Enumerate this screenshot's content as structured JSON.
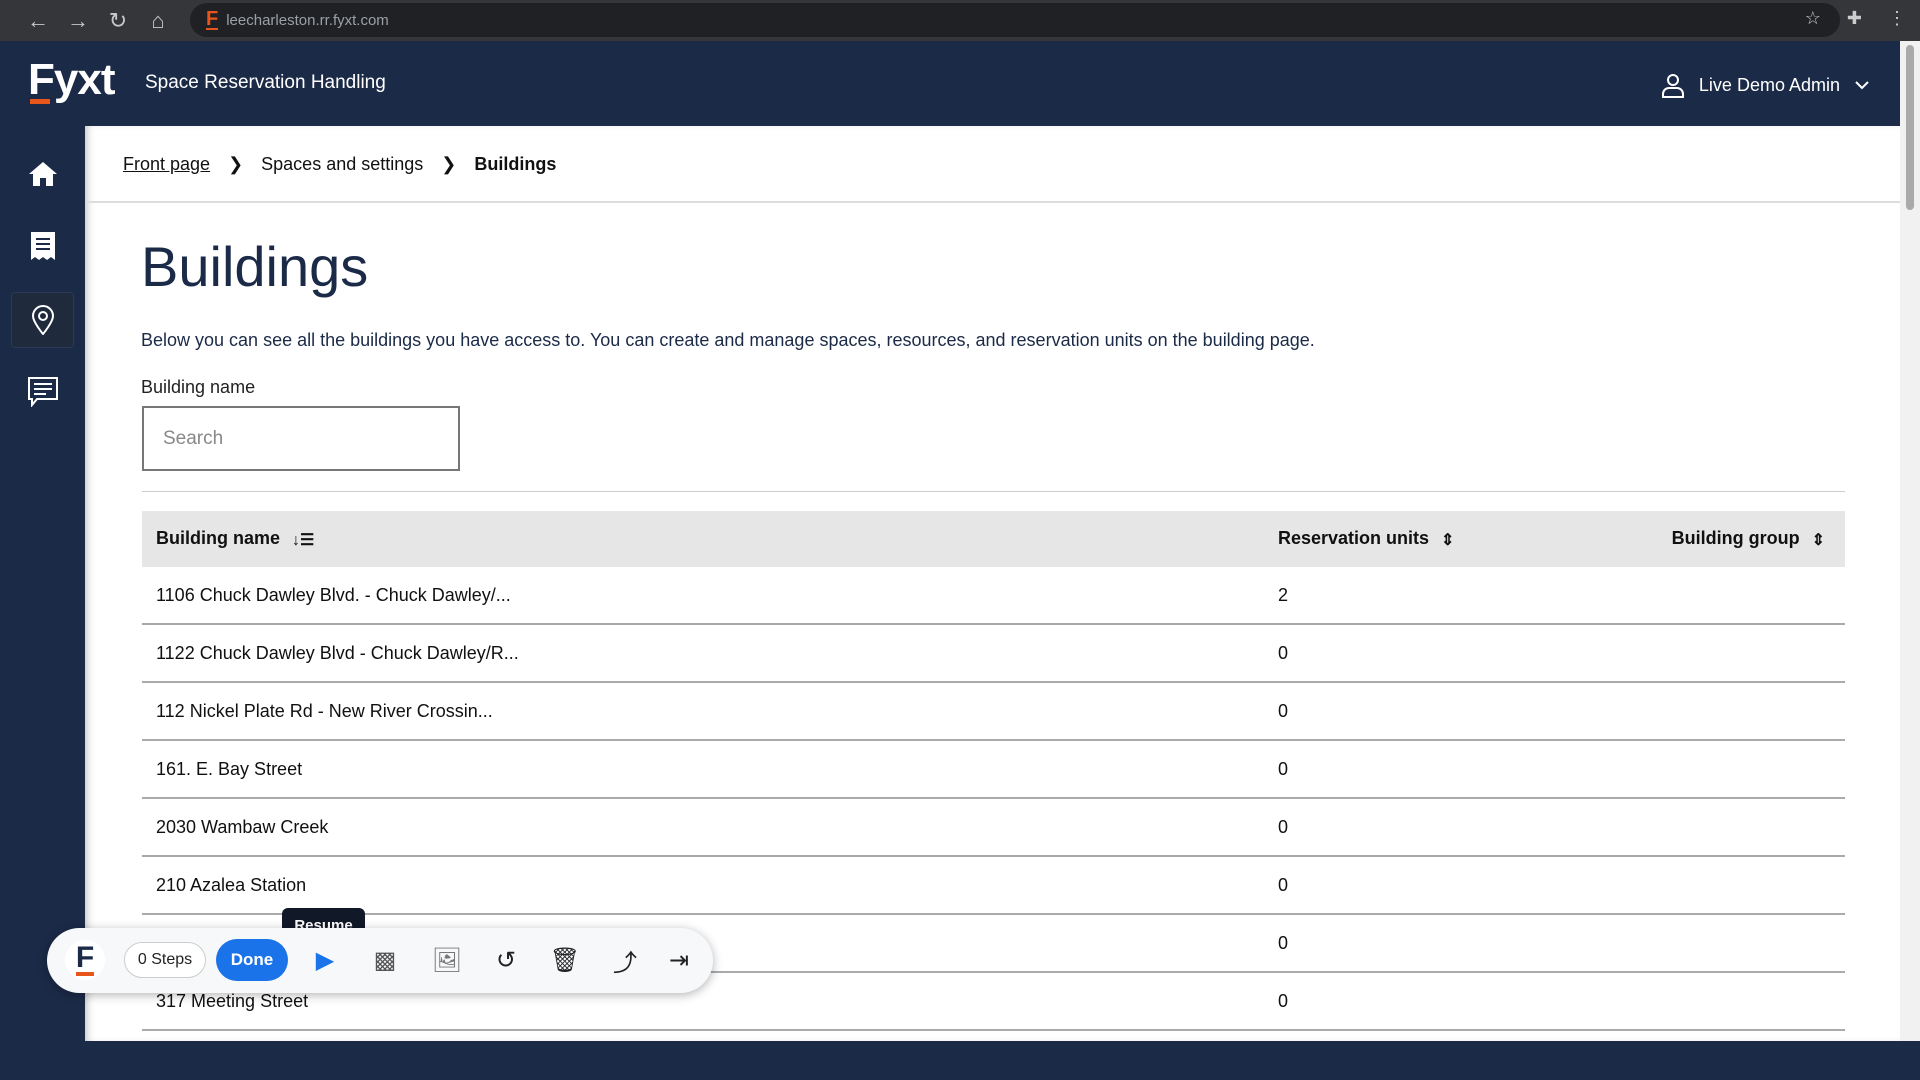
{
  "browser": {
    "url": "leecharleston.rr.fyxt.com"
  },
  "header": {
    "logo": "Fyxt",
    "app_title": "Space Reservation Handling",
    "user_name": "Live Demo Admin"
  },
  "sidebar": {
    "items": [
      {
        "icon": "home-icon"
      },
      {
        "icon": "receipt-icon"
      },
      {
        "icon": "location-pin-icon",
        "active": true
      },
      {
        "icon": "chat-icon"
      }
    ]
  },
  "breadcrumb": {
    "items": [
      "Front page",
      "Spaces and settings",
      "Buildings"
    ]
  },
  "page": {
    "title": "Buildings",
    "description": "Below you can see all the buildings you have access to. You can create and manage spaces, resources, and reservation units on the building page.",
    "filter_label": "Building name",
    "search_placeholder": "Search"
  },
  "table": {
    "headers": [
      "Building name",
      "Reservation units",
      "Building group"
    ],
    "rows": [
      {
        "name": "1106 Chuck Dawley Blvd. - Chuck Dawley/...",
        "units": "2",
        "group": ""
      },
      {
        "name": "1122 Chuck Dawley Blvd - Chuck Dawley/R...",
        "units": "0",
        "group": ""
      },
      {
        "name": "112 Nickel Plate Rd - New River Crossin...",
        "units": "0",
        "group": ""
      },
      {
        "name": "161. E. Bay Street",
        "units": "0",
        "group": ""
      },
      {
        "name": "2030 Wambaw Creek",
        "units": "0",
        "group": ""
      },
      {
        "name": "210 Azalea Station",
        "units": "0",
        "group": ""
      },
      {
        "name": "",
        "units": "0",
        "group": ""
      },
      {
        "name": "317 Meeting Street",
        "units": "0",
        "group": ""
      }
    ]
  },
  "toolbar": {
    "logo": "F",
    "steps": "0 Steps",
    "done": "Done",
    "tooltip": "Resume"
  },
  "colors": {
    "navy": "#1b2a47",
    "accent": "#e8561b",
    "primary": "#1a73e8"
  }
}
